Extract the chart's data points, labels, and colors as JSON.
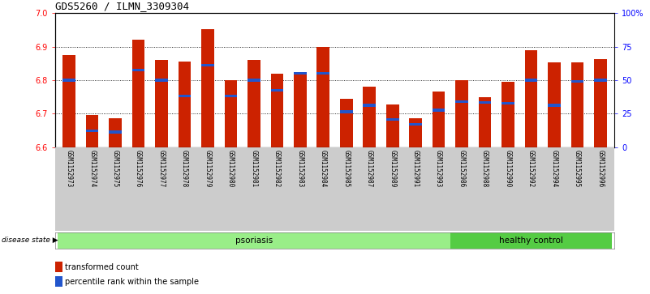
{
  "title": "GDS5260 / ILMN_3309304",
  "samples": [
    "GSM1152973",
    "GSM1152974",
    "GSM1152975",
    "GSM1152976",
    "GSM1152977",
    "GSM1152978",
    "GSM1152979",
    "GSM1152980",
    "GSM1152981",
    "GSM1152982",
    "GSM1152983",
    "GSM1152984",
    "GSM1152985",
    "GSM1152987",
    "GSM1152989",
    "GSM1152991",
    "GSM1152993",
    "GSM1152986",
    "GSM1152988",
    "GSM1152990",
    "GSM1152992",
    "GSM1152994",
    "GSM1152995",
    "GSM1152996"
  ],
  "transformed_count": [
    6.875,
    6.695,
    6.685,
    6.922,
    6.86,
    6.855,
    6.952,
    6.8,
    6.86,
    6.82,
    6.82,
    6.9,
    6.745,
    6.78,
    6.728,
    6.685,
    6.765,
    6.8,
    6.748,
    6.795,
    6.89,
    6.852,
    6.852,
    6.862
  ],
  "percentile_rank": [
    6.8,
    6.648,
    6.645,
    6.83,
    6.8,
    6.752,
    6.845,
    6.752,
    6.8,
    6.77,
    6.82,
    6.82,
    6.705,
    6.725,
    6.683,
    6.668,
    6.71,
    6.735,
    6.733,
    6.73,
    6.8,
    6.725,
    6.797,
    6.8
  ],
  "psoriasis_count": 17,
  "healthy_count": 7,
  "ymin": 6.6,
  "ymax": 7.0,
  "yticks": [
    6.6,
    6.7,
    6.8,
    6.9,
    7.0
  ],
  "right_yticks": [
    0,
    25,
    50,
    75,
    100
  ],
  "bar_color": "#cc2200",
  "blue_color": "#2255cc",
  "psoriasis_color": "#99ee88",
  "healthy_color": "#55cc44",
  "bg_color": "#cccccc",
  "legend_red_label": "transformed count",
  "legend_blue_label": "percentile rank within the sample"
}
